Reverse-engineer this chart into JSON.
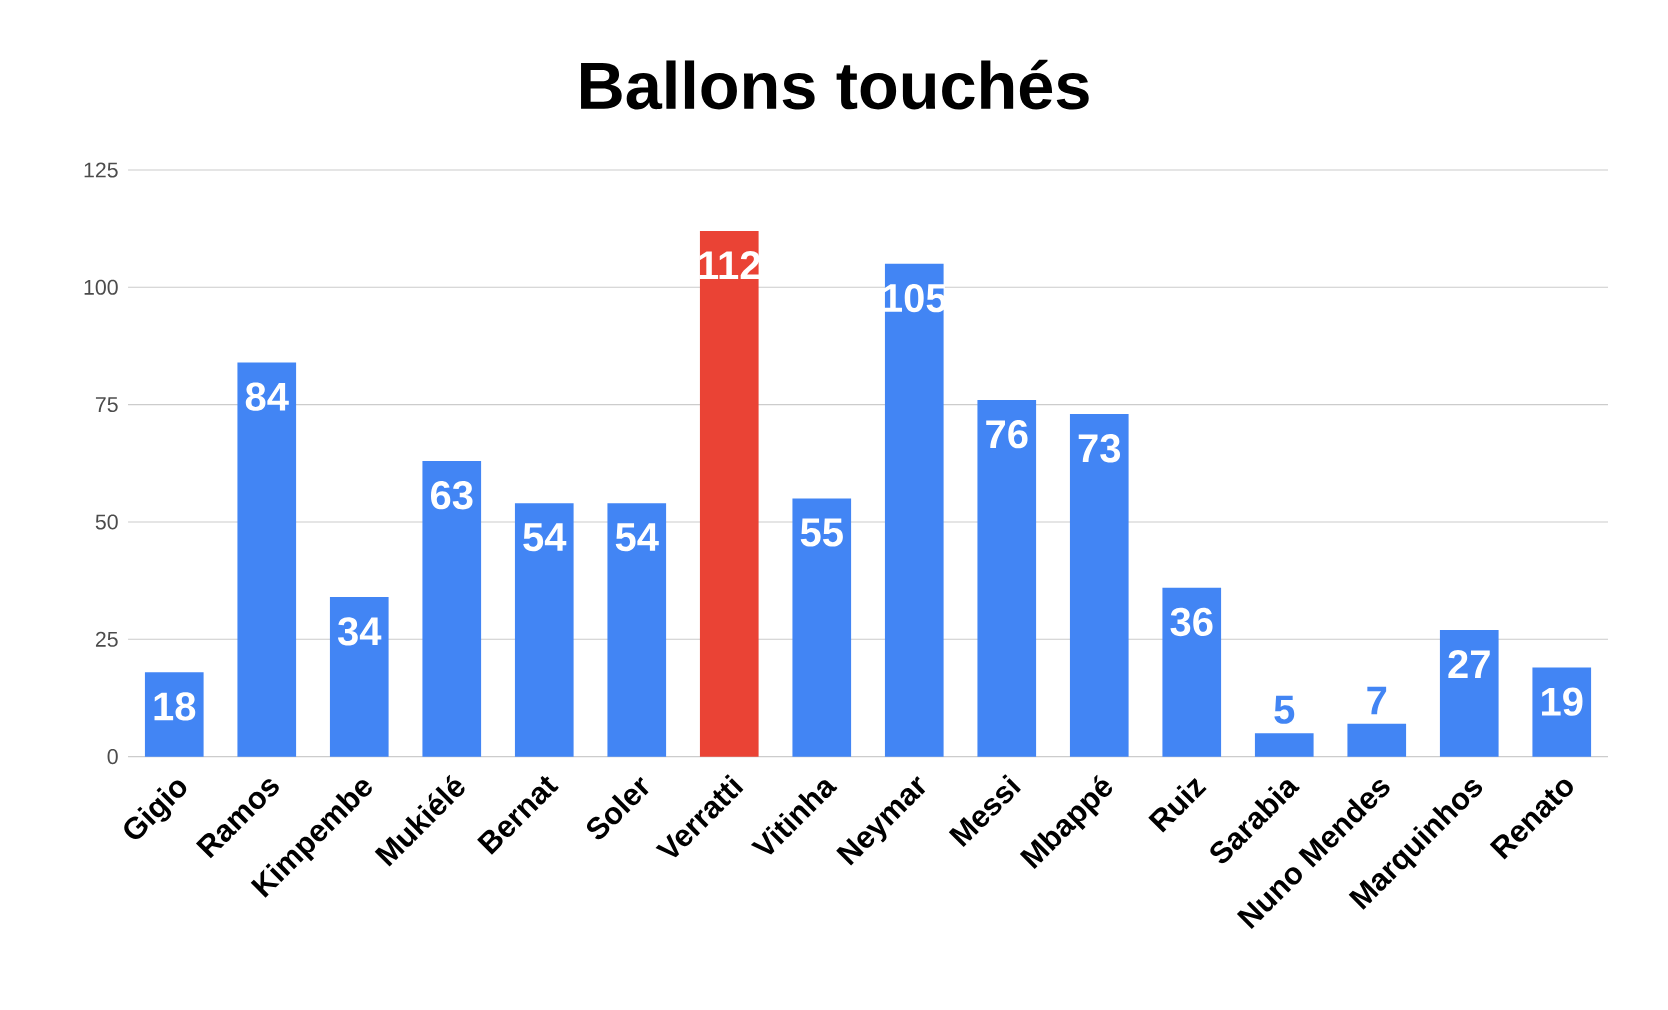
{
  "chart_data": {
    "type": "bar",
    "title": "Ballons touchés",
    "categories": [
      "Gigio",
      "Ramos",
      "Kimpembe",
      "Mukiélé",
      "Bernat",
      "Soler",
      "Verratti",
      "Vitinha",
      "Neymar",
      "Messi",
      "Mbappé",
      "Ruiz",
      "Sarabia",
      "Nuno Mendes",
      "Marquinhos",
      "Renato"
    ],
    "values": [
      18,
      84,
      34,
      63,
      54,
      54,
      112,
      55,
      105,
      76,
      73,
      36,
      5,
      7,
      27,
      19
    ],
    "colors": [
      "#4285f4",
      "#4285f4",
      "#4285f4",
      "#4285f4",
      "#4285f4",
      "#4285f4",
      "#ea4335",
      "#4285f4",
      "#4285f4",
      "#4285f4",
      "#4285f4",
      "#4285f4",
      "#4285f4",
      "#4285f4",
      "#4285f4",
      "#4285f4"
    ],
    "ylim": [
      0,
      125
    ],
    "yticks": [
      0,
      25,
      50,
      75,
      100,
      125
    ],
    "grid": "y",
    "data_labels": true
  }
}
